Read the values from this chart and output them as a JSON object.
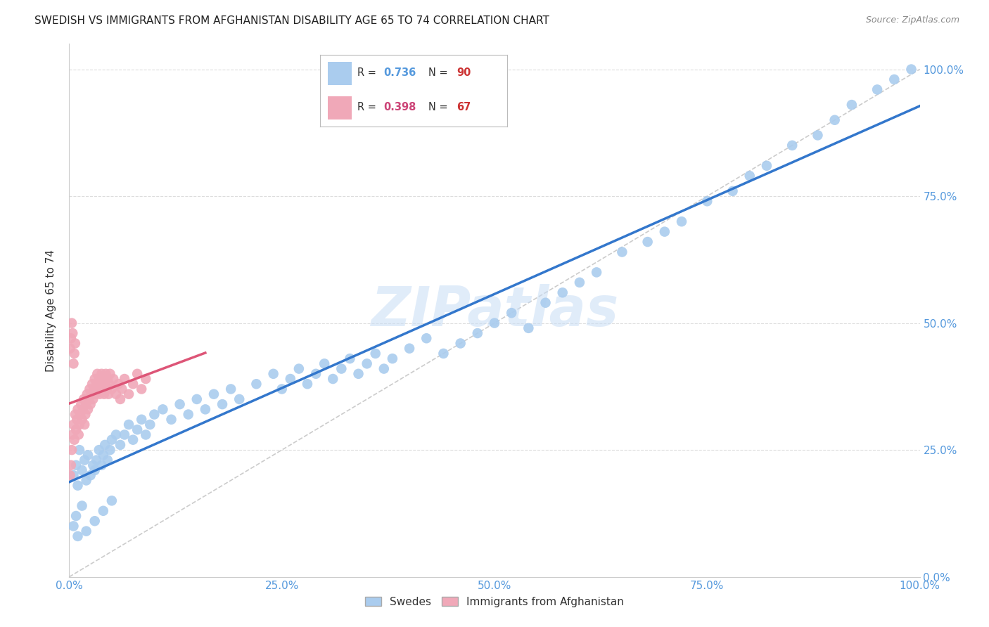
{
  "title": "SWEDISH VS IMMIGRANTS FROM AFGHANISTAN DISABILITY AGE 65 TO 74 CORRELATION CHART",
  "source": "Source: ZipAtlas.com",
  "ylabel": "Disability Age 65 to 74",
  "watermark": "ZIPatlas",
  "legend_r1": "R = 0.736",
  "legend_n1": "N = 90",
  "legend_r2": "R = 0.398",
  "legend_n2": "N = 67",
  "label_swedes": "Swedes",
  "label_afghan": "Immigrants from Afghanistan",
  "swedes_color": "#aaccee",
  "afghan_color": "#f0a8b8",
  "line_swedes": "#3377cc",
  "line_afghan": "#dd5577",
  "background_color": "#ffffff",
  "grid_color": "#dddddd",
  "title_fontsize": 11,
  "axis_label_fontsize": 11,
  "tick_color": "#5599dd",
  "swedes_x": [
    0.005,
    0.008,
    0.01,
    0.012,
    0.015,
    0.018,
    0.02,
    0.022,
    0.025,
    0.028,
    0.03,
    0.032,
    0.035,
    0.038,
    0.04,
    0.042,
    0.045,
    0.048,
    0.05,
    0.055,
    0.06,
    0.065,
    0.07,
    0.075,
    0.08,
    0.085,
    0.09,
    0.095,
    0.1,
    0.11,
    0.12,
    0.13,
    0.14,
    0.15,
    0.16,
    0.17,
    0.18,
    0.19,
    0.2,
    0.22,
    0.24,
    0.25,
    0.26,
    0.27,
    0.28,
    0.29,
    0.3,
    0.31,
    0.32,
    0.33,
    0.34,
    0.35,
    0.36,
    0.37,
    0.38,
    0.4,
    0.42,
    0.44,
    0.46,
    0.48,
    0.5,
    0.52,
    0.54,
    0.56,
    0.58,
    0.6,
    0.62,
    0.65,
    0.68,
    0.7,
    0.72,
    0.75,
    0.78,
    0.8,
    0.82,
    0.85,
    0.88,
    0.9,
    0.92,
    0.95,
    0.97,
    0.99,
    0.005,
    0.008,
    0.01,
    0.015,
    0.02,
    0.03,
    0.04,
    0.05
  ],
  "swedes_y": [
    0.2,
    0.22,
    0.18,
    0.25,
    0.21,
    0.23,
    0.19,
    0.24,
    0.2,
    0.22,
    0.21,
    0.23,
    0.25,
    0.22,
    0.24,
    0.26,
    0.23,
    0.25,
    0.27,
    0.28,
    0.26,
    0.28,
    0.3,
    0.27,
    0.29,
    0.31,
    0.28,
    0.3,
    0.32,
    0.33,
    0.31,
    0.34,
    0.32,
    0.35,
    0.33,
    0.36,
    0.34,
    0.37,
    0.35,
    0.38,
    0.4,
    0.37,
    0.39,
    0.41,
    0.38,
    0.4,
    0.42,
    0.39,
    0.41,
    0.43,
    0.4,
    0.42,
    0.44,
    0.41,
    0.43,
    0.45,
    0.47,
    0.44,
    0.46,
    0.48,
    0.5,
    0.52,
    0.49,
    0.54,
    0.56,
    0.58,
    0.6,
    0.64,
    0.66,
    0.68,
    0.7,
    0.74,
    0.76,
    0.79,
    0.81,
    0.85,
    0.87,
    0.9,
    0.93,
    0.96,
    0.98,
    1.0,
    0.1,
    0.12,
    0.08,
    0.14,
    0.09,
    0.11,
    0.13,
    0.15
  ],
  "afghan_x": [
    0.001,
    0.002,
    0.003,
    0.004,
    0.005,
    0.006,
    0.007,
    0.008,
    0.009,
    0.01,
    0.011,
    0.012,
    0.013,
    0.014,
    0.015,
    0.016,
    0.017,
    0.018,
    0.019,
    0.02,
    0.021,
    0.022,
    0.023,
    0.024,
    0.025,
    0.026,
    0.027,
    0.028,
    0.029,
    0.03,
    0.031,
    0.032,
    0.033,
    0.034,
    0.035,
    0.036,
    0.037,
    0.038,
    0.039,
    0.04,
    0.041,
    0.042,
    0.043,
    0.044,
    0.045,
    0.046,
    0.047,
    0.048,
    0.05,
    0.052,
    0.055,
    0.058,
    0.06,
    0.062,
    0.065,
    0.07,
    0.075,
    0.08,
    0.085,
    0.09,
    0.001,
    0.002,
    0.003,
    0.004,
    0.005,
    0.006,
    0.007
  ],
  "afghan_y": [
    0.2,
    0.22,
    0.25,
    0.28,
    0.3,
    0.27,
    0.32,
    0.29,
    0.31,
    0.33,
    0.28,
    0.3,
    0.32,
    0.34,
    0.31,
    0.33,
    0.35,
    0.3,
    0.32,
    0.34,
    0.36,
    0.33,
    0.35,
    0.37,
    0.34,
    0.36,
    0.38,
    0.35,
    0.37,
    0.39,
    0.36,
    0.38,
    0.4,
    0.37,
    0.39,
    0.36,
    0.38,
    0.4,
    0.37,
    0.39,
    0.36,
    0.38,
    0.4,
    0.37,
    0.39,
    0.36,
    0.38,
    0.4,
    0.37,
    0.39,
    0.36,
    0.38,
    0.35,
    0.37,
    0.39,
    0.36,
    0.38,
    0.4,
    0.37,
    0.39,
    0.45,
    0.47,
    0.5,
    0.48,
    0.42,
    0.44,
    0.46
  ],
  "xlim": [
    0.0,
    1.0
  ],
  "ylim": [
    0.0,
    1.05
  ],
  "xticks": [
    0.0,
    0.25,
    0.5,
    0.75,
    1.0
  ],
  "yticks": [
    0.0,
    0.25,
    0.5,
    0.75,
    1.0
  ]
}
